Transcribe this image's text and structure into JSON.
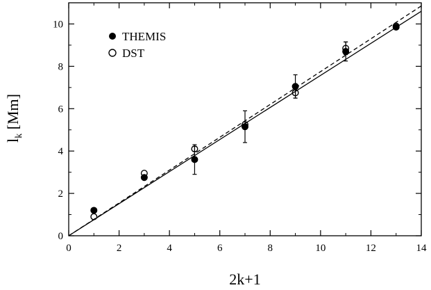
{
  "chart_data": {
    "type": "scatter",
    "xlabel": "2k+1",
    "ylabel_main": "l",
    "ylabel_sub": "k",
    "ylabel_unit": " [Mm]",
    "xlim": [
      0,
      14
    ],
    "ylim": [
      0,
      11
    ],
    "xticks": [
      0,
      2,
      4,
      6,
      8,
      10,
      12,
      14
    ],
    "yticks": [
      0,
      2,
      4,
      6,
      8,
      10
    ],
    "grid": false,
    "legend_position": "top-left",
    "series": [
      {
        "name": "THEMIS",
        "marker": "filled-circle",
        "color": "#000000",
        "points": [
          {
            "x": 1,
            "y": 1.2,
            "err": 0.0
          },
          {
            "x": 3,
            "y": 2.75,
            "err": 0.0
          },
          {
            "x": 5,
            "y": 3.6,
            "err": 0.7
          },
          {
            "x": 7,
            "y": 5.15,
            "err": 0.75
          },
          {
            "x": 9,
            "y": 7.05,
            "err": 0.55
          },
          {
            "x": 11,
            "y": 8.7,
            "err": 0.45
          },
          {
            "x": 13,
            "y": 9.85,
            "err": 0.0
          }
        ]
      },
      {
        "name": "DST",
        "marker": "open-circle",
        "color": "#000000",
        "points": [
          {
            "x": 1,
            "y": 0.9,
            "err": 0.0
          },
          {
            "x": 3,
            "y": 2.95,
            "err": 0.0
          },
          {
            "x": 5,
            "y": 4.1,
            "err": 0.12
          },
          {
            "x": 7,
            "y": 5.25,
            "err": 0.0
          },
          {
            "x": 9,
            "y": 6.75,
            "err": 0.25
          },
          {
            "x": 11,
            "y": 8.85,
            "err": 0.3
          },
          {
            "x": 13,
            "y": 9.9,
            "err": 0.0
          }
        ]
      }
    ],
    "fit_lines": [
      {
        "style": "solid",
        "x": [
          0,
          14
        ],
        "y": [
          0,
          10.6
        ]
      },
      {
        "style": "dashed",
        "x": [
          0,
          14
        ],
        "y": [
          0,
          10.85
        ]
      }
    ]
  }
}
